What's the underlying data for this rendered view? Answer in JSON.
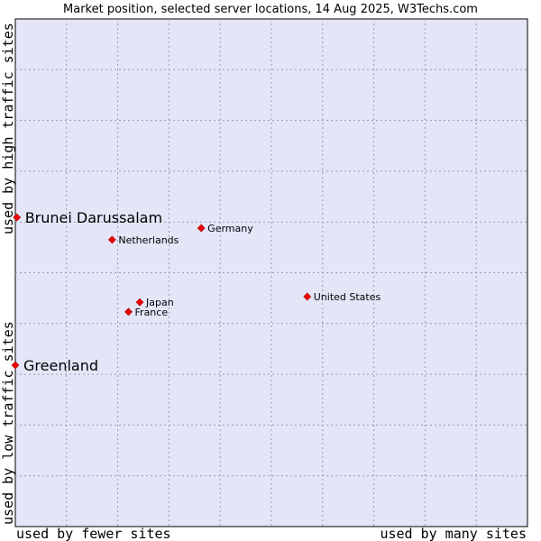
{
  "chart_data": {
    "type": "scatter",
    "title": "Market position, selected server locations, 14 Aug 2025, W3Techs.com",
    "xlabel_left": "used by fewer sites",
    "xlabel_right": "used by many sites",
    "ylabel_bottom": "used by low traffic sites",
    "ylabel_top": "used by high traffic sites",
    "xlim": [
      0,
      10
    ],
    "ylim": [
      0,
      10
    ],
    "grid": true,
    "background_color": "#e4e6f8",
    "grid_color": "#9a9ab0",
    "point_color": "#ee0000",
    "points": [
      {
        "name": "Brunei Darussalam",
        "x": 0.03,
        "y": 6.09,
        "emphasis": true
      },
      {
        "name": "Germany",
        "x": 3.63,
        "y": 5.88,
        "emphasis": false
      },
      {
        "name": "Netherlands",
        "x": 1.89,
        "y": 5.65,
        "emphasis": false
      },
      {
        "name": "United States",
        "x": 5.7,
        "y": 4.53,
        "emphasis": false
      },
      {
        "name": "Japan",
        "x": 2.43,
        "y": 4.42,
        "emphasis": false
      },
      {
        "name": "France",
        "x": 2.21,
        "y": 4.23,
        "emphasis": false
      },
      {
        "name": "Greenland",
        "x": 0.0,
        "y": 3.18,
        "emphasis": true
      }
    ]
  }
}
